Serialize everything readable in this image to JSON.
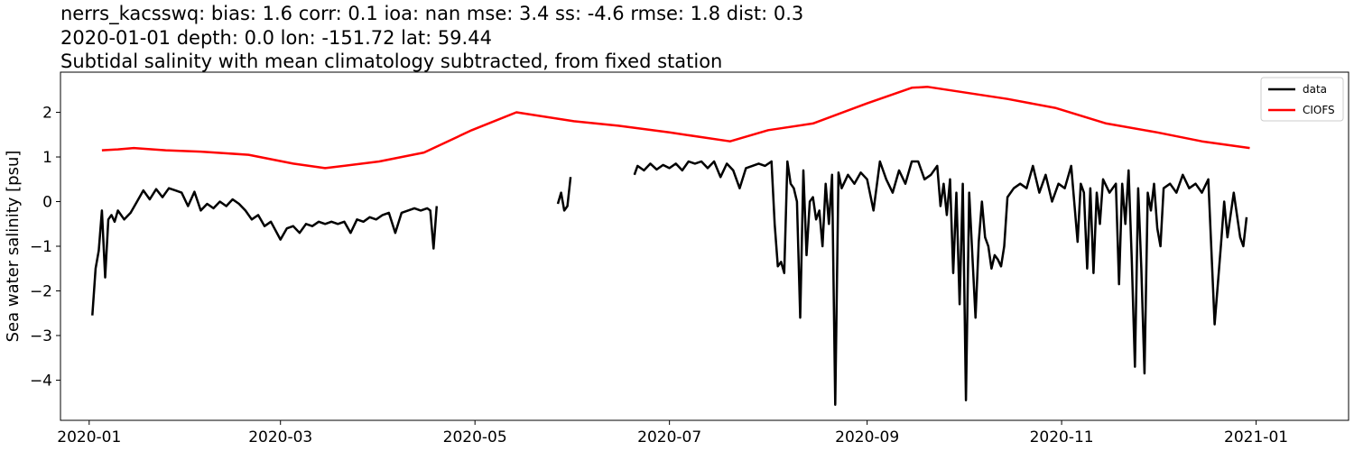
{
  "chart_data": {
    "type": "line",
    "title_lines": [
      "nerrs_kacsswq: bias: 1.6  corr: 0.1  ioa: nan  mse: 3.4  ss: -4.6  rmse: 1.8  dist: 0.3",
      "2020-01-01 depth: 0.0 lon: -151.72 lat: 59.44",
      "Subtidal salinity with mean climatology subtracted, from fixed station"
    ],
    "xlabel": "",
    "ylabel": "Sea water salinity [psu]",
    "xlim": [
      "2019-12-23",
      "2021-01-30"
    ],
    "ylim": [
      -4.9,
      2.9
    ],
    "xticks": [
      "2020-01-01",
      "2020-03-01",
      "2020-05-01",
      "2020-07-01",
      "2020-09-01",
      "2020-11-01",
      "2021-01-01"
    ],
    "xtick_labels": [
      "2020-01",
      "2020-03",
      "2020-05",
      "2020-07",
      "2020-09",
      "2020-11",
      "2021-01"
    ],
    "yticks": [
      -4,
      -3,
      -2,
      -1,
      0,
      1,
      2
    ],
    "ytick_labels": [
      "−4",
      "−3",
      "−2",
      "−1",
      "0",
      "1",
      "2"
    ],
    "legend_position": "top-right",
    "grid": false,
    "series": [
      {
        "name": "data",
        "color": "#000000",
        "segments": [
          [
            [
              "2020-01-02",
              -2.55
            ],
            [
              "2020-01-03",
              -1.5
            ],
            [
              "2020-01-04",
              -1.1
            ],
            [
              "2020-01-05",
              -0.2
            ],
            [
              "2020-01-06",
              -1.7
            ],
            [
              "2020-01-07",
              -0.4
            ],
            [
              "2020-01-08",
              -0.3
            ],
            [
              "2020-01-09",
              -0.45
            ],
            [
              "2020-01-10",
              -0.2
            ],
            [
              "2020-01-12",
              -0.4
            ],
            [
              "2020-01-14",
              -0.25
            ],
            [
              "2020-01-16",
              0.0
            ],
            [
              "2020-01-18",
              0.25
            ],
            [
              "2020-01-20",
              0.05
            ],
            [
              "2020-01-22",
              0.28
            ],
            [
              "2020-01-24",
              0.1
            ],
            [
              "2020-01-26",
              0.3
            ],
            [
              "2020-01-28",
              0.25
            ],
            [
              "2020-01-30",
              0.2
            ],
            [
              "2020-02-01",
              -0.1
            ],
            [
              "2020-02-03",
              0.22
            ],
            [
              "2020-02-05",
              -0.2
            ],
            [
              "2020-02-07",
              -0.05
            ],
            [
              "2020-02-09",
              -0.15
            ],
            [
              "2020-02-11",
              0.0
            ],
            [
              "2020-02-13",
              -0.1
            ],
            [
              "2020-02-15",
              0.05
            ],
            [
              "2020-02-17",
              -0.05
            ],
            [
              "2020-02-19",
              -0.2
            ],
            [
              "2020-02-21",
              -0.4
            ],
            [
              "2020-02-23",
              -0.3
            ],
            [
              "2020-02-25",
              -0.55
            ],
            [
              "2020-02-27",
              -0.45
            ],
            [
              "2020-03-01",
              -0.85
            ],
            [
              "2020-03-03",
              -0.6
            ],
            [
              "2020-03-05",
              -0.55
            ],
            [
              "2020-03-07",
              -0.7
            ],
            [
              "2020-03-09",
              -0.5
            ],
            [
              "2020-03-11",
              -0.55
            ],
            [
              "2020-03-13",
              -0.45
            ],
            [
              "2020-03-15",
              -0.5
            ],
            [
              "2020-03-17",
              -0.45
            ],
            [
              "2020-03-19",
              -0.5
            ],
            [
              "2020-03-21",
              -0.45
            ],
            [
              "2020-03-23",
              -0.7
            ],
            [
              "2020-03-25",
              -0.4
            ],
            [
              "2020-03-27",
              -0.45
            ],
            [
              "2020-03-29",
              -0.35
            ],
            [
              "2020-03-31",
              -0.4
            ],
            [
              "2020-04-02",
              -0.3
            ],
            [
              "2020-04-04",
              -0.25
            ],
            [
              "2020-04-06",
              -0.7
            ],
            [
              "2020-04-08",
              -0.25
            ],
            [
              "2020-04-10",
              -0.2
            ],
            [
              "2020-04-12",
              -0.15
            ],
            [
              "2020-04-14",
              -0.2
            ],
            [
              "2020-04-16",
              -0.15
            ],
            [
              "2020-04-17",
              -0.2
            ],
            [
              "2020-04-18",
              -1.05
            ],
            [
              "2020-04-19",
              -0.1
            ]
          ],
          [
            [
              "2020-05-27",
              -0.05
            ],
            [
              "2020-05-28",
              0.2
            ],
            [
              "2020-05-29",
              -0.2
            ],
            [
              "2020-05-30",
              -0.1
            ],
            [
              "2020-05-31",
              0.55
            ]
          ],
          [
            [
              "2020-06-20",
              0.6
            ],
            [
              "2020-06-21",
              0.8
            ],
            [
              "2020-06-23",
              0.7
            ],
            [
              "2020-06-25",
              0.85
            ],
            [
              "2020-06-27",
              0.72
            ],
            [
              "2020-06-29",
              0.82
            ],
            [
              "2020-07-01",
              0.75
            ],
            [
              "2020-07-03",
              0.85
            ],
            [
              "2020-07-05",
              0.7
            ],
            [
              "2020-07-07",
              0.9
            ],
            [
              "2020-07-09",
              0.85
            ],
            [
              "2020-07-11",
              0.9
            ],
            [
              "2020-07-13",
              0.75
            ],
            [
              "2020-07-15",
              0.9
            ],
            [
              "2020-07-17",
              0.55
            ],
            [
              "2020-07-19",
              0.85
            ],
            [
              "2020-07-21",
              0.7
            ],
            [
              "2020-07-23",
              0.3
            ],
            [
              "2020-07-25",
              0.75
            ],
            [
              "2020-07-27",
              0.8
            ],
            [
              "2020-07-29",
              0.85
            ],
            [
              "2020-07-31",
              0.8
            ],
            [
              "2020-08-02",
              0.9
            ],
            [
              "2020-08-03",
              -0.5
            ],
            [
              "2020-08-04",
              -1.45
            ],
            [
              "2020-08-05",
              -1.35
            ],
            [
              "2020-08-06",
              -1.6
            ],
            [
              "2020-08-07",
              0.9
            ],
            [
              "2020-08-08",
              0.4
            ],
            [
              "2020-08-09",
              0.3
            ],
            [
              "2020-08-10",
              0.0
            ],
            [
              "2020-08-11",
              -2.6
            ],
            [
              "2020-08-12",
              0.7
            ],
            [
              "2020-08-13",
              -1.2
            ],
            [
              "2020-08-14",
              0.0
            ],
            [
              "2020-08-15",
              0.1
            ],
            [
              "2020-08-16",
              -0.4
            ],
            [
              "2020-08-17",
              -0.2
            ],
            [
              "2020-08-18",
              -1.0
            ],
            [
              "2020-08-19",
              0.4
            ],
            [
              "2020-08-20",
              -0.5
            ],
            [
              "2020-08-21",
              0.6
            ],
            [
              "2020-08-22",
              -4.55
            ],
            [
              "2020-08-23",
              0.65
            ],
            [
              "2020-08-24",
              0.3
            ],
            [
              "2020-08-26",
              0.6
            ],
            [
              "2020-08-28",
              0.4
            ],
            [
              "2020-08-30",
              0.65
            ],
            [
              "2020-09-01",
              0.5
            ],
            [
              "2020-09-03",
              -0.2
            ],
            [
              "2020-09-05",
              0.9
            ],
            [
              "2020-09-07",
              0.5
            ],
            [
              "2020-09-09",
              0.2
            ],
            [
              "2020-09-11",
              0.7
            ],
            [
              "2020-09-13",
              0.4
            ],
            [
              "2020-09-15",
              0.9
            ],
            [
              "2020-09-17",
              0.9
            ],
            [
              "2020-09-19",
              0.5
            ],
            [
              "2020-09-21",
              0.6
            ],
            [
              "2020-09-23",
              0.8
            ],
            [
              "2020-09-24",
              -0.1
            ],
            [
              "2020-09-25",
              0.4
            ],
            [
              "2020-09-26",
              -0.3
            ],
            [
              "2020-09-27",
              0.5
            ],
            [
              "2020-09-28",
              -1.6
            ],
            [
              "2020-09-29",
              0.2
            ],
            [
              "2020-09-30",
              -2.3
            ],
            [
              "2020-10-01",
              0.4
            ],
            [
              "2020-10-02",
              -4.45
            ],
            [
              "2020-10-03",
              0.2
            ],
            [
              "2020-10-04",
              -1.2
            ],
            [
              "2020-10-05",
              -2.6
            ],
            [
              "2020-10-06",
              -0.9
            ],
            [
              "2020-10-07",
              0.0
            ],
            [
              "2020-10-08",
              -0.8
            ],
            [
              "2020-10-09",
              -1.0
            ],
            [
              "2020-10-10",
              -1.5
            ],
            [
              "2020-10-11",
              -1.2
            ],
            [
              "2020-10-12",
              -1.3
            ],
            [
              "2020-10-13",
              -1.45
            ],
            [
              "2020-10-14",
              -1.0
            ],
            [
              "2020-10-15",
              0.1
            ],
            [
              "2020-10-17",
              0.3
            ],
            [
              "2020-10-19",
              0.4
            ],
            [
              "2020-10-21",
              0.3
            ],
            [
              "2020-10-23",
              0.8
            ],
            [
              "2020-10-25",
              0.2
            ],
            [
              "2020-10-27",
              0.6
            ],
            [
              "2020-10-29",
              0.0
            ],
            [
              "2020-10-31",
              0.4
            ],
            [
              "2020-11-02",
              0.3
            ],
            [
              "2020-11-04",
              0.8
            ],
            [
              "2020-11-06",
              -0.9
            ],
            [
              "2020-11-07",
              0.4
            ],
            [
              "2020-11-08",
              0.2
            ],
            [
              "2020-11-09",
              -1.5
            ],
            [
              "2020-11-10",
              0.3
            ],
            [
              "2020-11-11",
              -1.6
            ],
            [
              "2020-11-12",
              0.2
            ],
            [
              "2020-11-13",
              -0.5
            ],
            [
              "2020-11-14",
              0.5
            ],
            [
              "2020-11-16",
              0.2
            ],
            [
              "2020-11-18",
              0.4
            ],
            [
              "2020-11-19",
              -1.85
            ],
            [
              "2020-11-20",
              0.4
            ],
            [
              "2020-11-21",
              -0.5
            ],
            [
              "2020-11-22",
              0.7
            ],
            [
              "2020-11-23",
              -1.3
            ],
            [
              "2020-11-24",
              -3.7
            ],
            [
              "2020-11-25",
              0.3
            ],
            [
              "2020-11-26",
              -1.5
            ],
            [
              "2020-11-27",
              -3.85
            ],
            [
              "2020-11-28",
              0.2
            ],
            [
              "2020-11-29",
              -0.2
            ],
            [
              "2020-11-30",
              0.4
            ],
            [
              "2020-12-01",
              -0.6
            ],
            [
              "2020-12-02",
              -1.0
            ],
            [
              "2020-12-03",
              0.3
            ],
            [
              "2020-12-05",
              0.4
            ],
            [
              "2020-12-07",
              0.2
            ],
            [
              "2020-12-09",
              0.6
            ],
            [
              "2020-12-11",
              0.3
            ],
            [
              "2020-12-13",
              0.4
            ],
            [
              "2020-12-15",
              0.2
            ],
            [
              "2020-12-17",
              0.5
            ],
            [
              "2020-12-19",
              -2.75
            ],
            [
              "2020-12-21",
              -0.95
            ],
            [
              "2020-12-22",
              0.0
            ],
            [
              "2020-12-23",
              -0.8
            ],
            [
              "2020-12-25",
              0.2
            ],
            [
              "2020-12-27",
              -0.8
            ],
            [
              "2020-12-28",
              -1.0
            ],
            [
              "2020-12-29",
              -0.35
            ]
          ]
        ]
      },
      {
        "name": "CIOFS",
        "color": "#ff0000",
        "segments": [
          [
            [
              "2020-01-05",
              1.15
            ],
            [
              "2020-01-10",
              1.17
            ],
            [
              "2020-01-15",
              1.2
            ],
            [
              "2020-01-25",
              1.15
            ],
            [
              "2020-02-05",
              1.12
            ],
            [
              "2020-02-20",
              1.05
            ],
            [
              "2020-03-05",
              0.85
            ],
            [
              "2020-03-15",
              0.75
            ],
            [
              "2020-04-01",
              0.9
            ],
            [
              "2020-04-15",
              1.1
            ],
            [
              "2020-04-30",
              1.6
            ],
            [
              "2020-05-14",
              2.0
            ],
            [
              "2020-06-01",
              1.8
            ],
            [
              "2020-06-15",
              1.7
            ],
            [
              "2020-07-01",
              1.55
            ],
            [
              "2020-07-20",
              1.35
            ],
            [
              "2020-08-01",
              1.6
            ],
            [
              "2020-08-15",
              1.75
            ],
            [
              "2020-09-01",
              2.2
            ],
            [
              "2020-09-15",
              2.55
            ],
            [
              "2020-09-20",
              2.57
            ],
            [
              "2020-10-15",
              2.3
            ],
            [
              "2020-10-30",
              2.1
            ],
            [
              "2020-11-15",
              1.75
            ],
            [
              "2020-12-01",
              1.55
            ],
            [
              "2020-12-15",
              1.35
            ],
            [
              "2020-12-30",
              1.2
            ]
          ]
        ]
      }
    ]
  }
}
